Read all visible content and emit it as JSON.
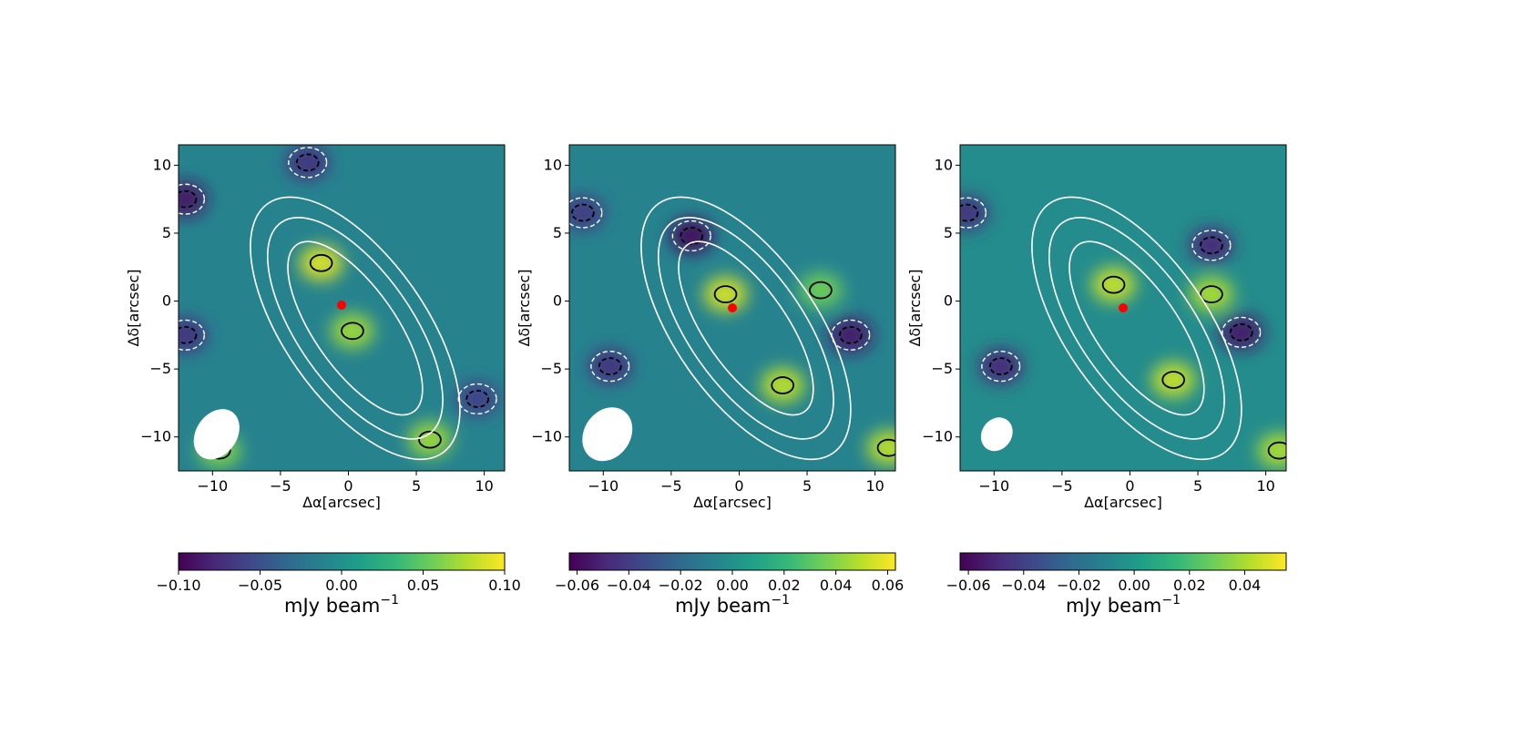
{
  "colors": {
    "colormap": [
      "#440154",
      "#482878",
      "#3e4989",
      "#31688e",
      "#26828e",
      "#1f9e89",
      "#35b779",
      "#6ece58",
      "#b5de2b",
      "#fde725"
    ],
    "positive_contour": "#000000",
    "negative_contour": "#000000",
    "overlay_contour": "#ffffff",
    "beam": "#ffffff",
    "marker": "#ff0000"
  },
  "chart_data": [
    {
      "type": "heatmap",
      "panel": "left",
      "xlabel": "Δα[arcsec]",
      "ylabel": "Δδ[arcsec]",
      "xlim": [
        -12.5,
        11.5
      ],
      "ylim": [
        -12.5,
        11.5
      ],
      "x_ticks": [
        -10,
        -5,
        0,
        5,
        10
      ],
      "x_tick_labels": [
        "−10",
        "−5",
        "0",
        "5",
        "10"
      ],
      "y_ticks": [
        -10,
        -5,
        0,
        5,
        10
      ],
      "y_tick_labels": [
        "−10",
        "−5",
        "0",
        "5",
        "10"
      ],
      "grid": false,
      "marker": {
        "x": -0.5,
        "y": -0.3
      },
      "beam": {
        "x": -9.7,
        "y": -9.8,
        "major": 2.0,
        "minor": 1.5
      },
      "colorbar": {
        "range": [
          -0.1,
          0.1
        ],
        "ticks": [
          -0.1,
          -0.05,
          0.0,
          0.05,
          0.1
        ],
        "tick_labels": [
          "−0.10",
          "−0.05",
          "0.00",
          "0.05",
          "0.10"
        ],
        "label": "mJy beam",
        "label_exponent": "−1"
      },
      "blobs": [
        {
          "x": -2.0,
          "y": 2.8,
          "value": 0.09
        },
        {
          "x": 0.3,
          "y": -2.2,
          "value": 0.07
        },
        {
          "x": 6.0,
          "y": -10.2,
          "value": 0.07
        },
        {
          "x": -9.5,
          "y": -11.0,
          "value": 0.06
        },
        {
          "x": -12.0,
          "y": 7.5,
          "value": -0.09
        },
        {
          "x": -3.0,
          "y": 10.2,
          "value": -0.07
        },
        {
          "x": -12.0,
          "y": -2.5,
          "value": -0.07
        },
        {
          "x": 9.5,
          "y": -7.2,
          "value": -0.06
        }
      ]
    },
    {
      "type": "heatmap",
      "panel": "middle",
      "xlabel": "Δα[arcsec]",
      "ylabel": "Δδ[arcsec]",
      "xlim": [
        -12.5,
        11.5
      ],
      "ylim": [
        -12.5,
        11.5
      ],
      "x_ticks": [
        -10,
        -5,
        0,
        5,
        10
      ],
      "x_tick_labels": [
        "−10",
        "−5",
        "0",
        "5",
        "10"
      ],
      "y_ticks": [
        -10,
        -5,
        0,
        5,
        10
      ],
      "y_tick_labels": [
        "−10",
        "−5",
        "0",
        "5",
        "10"
      ],
      "grid": false,
      "marker": {
        "x": -0.5,
        "y": -0.5
      },
      "beam": {
        "x": -9.7,
        "y": -9.8,
        "major": 2.1,
        "minor": 1.7
      },
      "colorbar": {
        "range": [
          -0.063,
          0.063
        ],
        "ticks": [
          -0.06,
          -0.04,
          -0.02,
          0.0,
          0.02,
          0.04,
          0.06
        ],
        "tick_labels": [
          "−0.06",
          "−0.04",
          "−0.02",
          "0.00",
          "0.02",
          "0.04",
          "0.06"
        ],
        "label": "mJy beam",
        "label_exponent": "−1"
      },
      "blobs": [
        {
          "x": -1.0,
          "y": 0.5,
          "value": 0.055
        },
        {
          "x": 3.2,
          "y": -6.2,
          "value": 0.05
        },
        {
          "x": 6.0,
          "y": 0.8,
          "value": 0.035
        },
        {
          "x": 11.0,
          "y": -10.8,
          "value": 0.05
        },
        {
          "x": -3.5,
          "y": 4.8,
          "value": -0.06
        },
        {
          "x": 8.2,
          "y": -2.5,
          "value": -0.055
        },
        {
          "x": -9.5,
          "y": -4.8,
          "value": -0.045
        },
        {
          "x": -11.5,
          "y": 6.5,
          "value": -0.04
        }
      ]
    },
    {
      "type": "heatmap",
      "panel": "right",
      "xlabel": "Δα[arcsec]",
      "ylabel": "Δδ[arcsec]",
      "xlim": [
        -12.5,
        11.5
      ],
      "ylim": [
        -12.5,
        11.5
      ],
      "x_ticks": [
        -10,
        -5,
        0,
        5,
        10
      ],
      "x_tick_labels": [
        "−10",
        "−5",
        "0",
        "5",
        "10"
      ],
      "y_ticks": [
        -10,
        -5,
        0,
        5,
        10
      ],
      "y_tick_labels": [
        "−10",
        "−5",
        "0",
        "5",
        "10"
      ],
      "grid": false,
      "marker": {
        "x": -0.5,
        "y": -0.5
      },
      "beam": {
        "x": -9.8,
        "y": -9.8,
        "major": 1.3,
        "minor": 1.1
      },
      "colorbar": {
        "range": [
          -0.063,
          0.055
        ],
        "ticks": [
          -0.06,
          -0.04,
          -0.02,
          0.0,
          0.02,
          0.04
        ],
        "tick_labels": [
          "−0.06",
          "−0.04",
          "−0.02",
          "0.00",
          "0.02",
          "0.04"
        ],
        "label": "mJy beam",
        "label_exponent": "−1"
      },
      "blobs": [
        {
          "x": -1.2,
          "y": 1.2,
          "value": 0.045
        },
        {
          "x": 3.2,
          "y": -5.8,
          "value": 0.045
        },
        {
          "x": 6.0,
          "y": 0.5,
          "value": 0.04
        },
        {
          "x": 11.0,
          "y": -11.0,
          "value": 0.04
        },
        {
          "x": 8.2,
          "y": -2.3,
          "value": -0.055
        },
        {
          "x": 6.0,
          "y": 4.1,
          "value": -0.05
        },
        {
          "x": -9.5,
          "y": -4.8,
          "value": -0.05
        },
        {
          "x": -12.0,
          "y": 6.5,
          "value": -0.045
        }
      ]
    }
  ]
}
